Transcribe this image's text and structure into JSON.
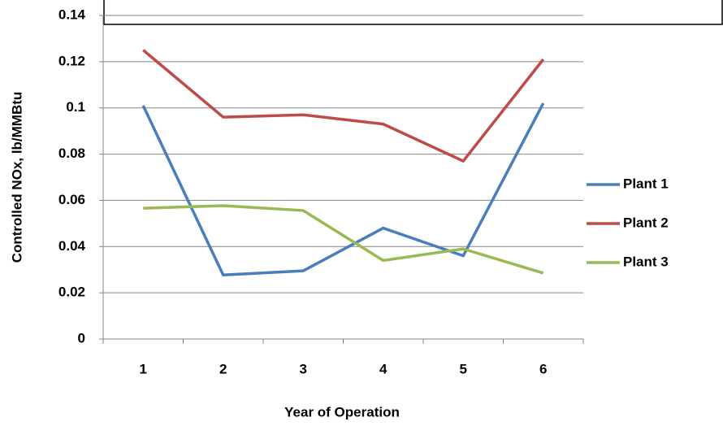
{
  "chart_data": {
    "type": "line",
    "x_label": "Year of Operation",
    "y_label": "Controlled NOx, lb/MMBtu",
    "categories": [
      "1",
      "2",
      "3",
      "4",
      "5",
      "6"
    ],
    "series": [
      {
        "name": "Plant 1",
        "color": "#4a7ebb",
        "values": [
          0.101,
          0.0277,
          0.0295,
          0.048,
          0.036,
          0.102
        ]
      },
      {
        "name": "Plant 2",
        "color": "#be4b48",
        "values": [
          0.125,
          0.096,
          0.097,
          0.093,
          0.077,
          0.121
        ]
      },
      {
        "name": "Plant 3",
        "color": "#98b954",
        "values": [
          0.0566,
          0.0577,
          0.0556,
          0.034,
          0.039,
          0.0285
        ]
      }
    ],
    "ylim": [
      0,
      0.14
    ],
    "yticks": [
      0,
      0.02,
      0.04,
      0.06,
      0.08,
      0.1,
      0.12,
      0.14
    ],
    "grid": true,
    "legend": "right"
  }
}
